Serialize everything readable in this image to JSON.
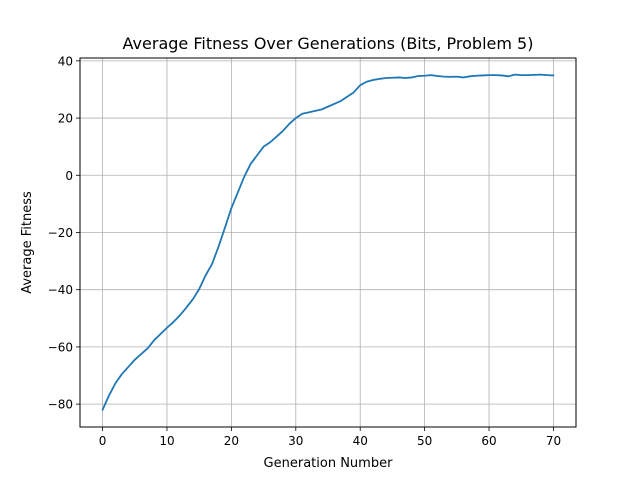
{
  "chart_data": {
    "type": "line",
    "title": "Average Fitness Over Generations (Bits, Problem 5)",
    "xlabel": "Generation Number",
    "ylabel": "Average Fitness",
    "xlim": [
      -3.5,
      73.5
    ],
    "ylim": [
      -88,
      41
    ],
    "xticks": [
      0,
      10,
      20,
      30,
      40,
      50,
      60,
      70
    ],
    "yticks": [
      -80,
      -60,
      -40,
      -20,
      0,
      20,
      40
    ],
    "xtick_labels": [
      "0",
      "10",
      "20",
      "30",
      "40",
      "50",
      "60",
      "70"
    ],
    "ytick_labels": [
      "−80",
      "−60",
      "−40",
      "−20",
      "0",
      "20",
      "40"
    ],
    "grid": true,
    "line_color": "#1f77b4",
    "series": [
      {
        "x": [
          0,
          1,
          2,
          3,
          4,
          5,
          6,
          7,
          8,
          9,
          10,
          11,
          12,
          13,
          14,
          15,
          16,
          17,
          18,
          19,
          20,
          21,
          22,
          23,
          24,
          25,
          26,
          27,
          28,
          29,
          30,
          31,
          32,
          33,
          34,
          35,
          36,
          37,
          38,
          39,
          40,
          41,
          42,
          43,
          44,
          45,
          46,
          47,
          48,
          49,
          50,
          51,
          52,
          53,
          54,
          55,
          56,
          57,
          58,
          59,
          60,
          61,
          62,
          63,
          64,
          65,
          66,
          67,
          68,
          69,
          70
        ],
        "values": [
          -82,
          -77,
          -72.7,
          -69.5,
          -67,
          -64.5,
          -62.5,
          -60.5,
          -57.7,
          -55.5,
          -53.3,
          -51.3,
          -49,
          -46.3,
          -43.4,
          -39.8,
          -35,
          -31,
          -25,
          -18.3,
          -11.5,
          -6,
          -0.5,
          4,
          7,
          10,
          11.5,
          13.5,
          15.5,
          18,
          20,
          21.5,
          22,
          22.5,
          23,
          24,
          25,
          26,
          27.5,
          29,
          31.5,
          32.7,
          33.3,
          33.7,
          34,
          34.1,
          34.2,
          34,
          34.2,
          34.7,
          34.8,
          35,
          34.7,
          34.5,
          34.4,
          34.5,
          34.2,
          34.6,
          34.8,
          34.9,
          35,
          35,
          34.9,
          34.6,
          35.2,
          35,
          35,
          35.1,
          35.2,
          35,
          34.9
        ]
      }
    ]
  }
}
